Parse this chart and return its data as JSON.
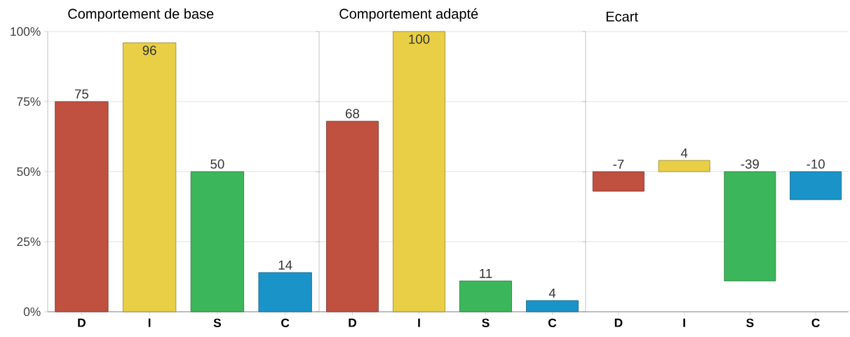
{
  "chart_data": [
    {
      "type": "bar",
      "title": "Comportement de base",
      "categories": [
        "D",
        "I",
        "S",
        "C"
      ],
      "values": [
        75,
        96,
        50,
        14
      ],
      "colors": [
        "#c0503f",
        "#e8cf45",
        "#3cb65a",
        "#1a93c8"
      ],
      "ylim": [
        0,
        100
      ],
      "yticks": [
        {
          "value": 0,
          "label": "0%"
        },
        {
          "value": 25,
          "label": "25%"
        },
        {
          "value": 50,
          "label": "50%"
        },
        {
          "value": 75,
          "label": "75%"
        },
        {
          "value": 100,
          "label": "100%"
        }
      ],
      "grid": "y",
      "data_labels": true
    },
    {
      "type": "bar",
      "title": "Comportement adapté",
      "categories": [
        "D",
        "I",
        "S",
        "C"
      ],
      "values": [
        68,
        100,
        11,
        4
      ],
      "colors": [
        "#c0503f",
        "#e8cf45",
        "#3cb65a",
        "#1a93c8"
      ],
      "ylim": [
        0,
        100
      ],
      "yticks": [
        0,
        25,
        50,
        75,
        100
      ],
      "grid": "y",
      "data_labels": true,
      "tick_labels": "x"
    },
    {
      "type": "bar",
      "title": "Ecart",
      "categories": [
        "D",
        "I",
        "S",
        "C"
      ],
      "values": [
        -7,
        4,
        -39,
        -10
      ],
      "base": [
        50,
        50,
        50,
        50
      ],
      "colors": [
        "#c0503f",
        "#e8cf45",
        "#3cb65a",
        "#1a93c8"
      ],
      "ylim": [
        0,
        100
      ],
      "yticks": [
        0,
        25,
        50,
        75,
        100
      ],
      "grid": "y",
      "data_labels": true,
      "tick_labels": "x"
    }
  ]
}
